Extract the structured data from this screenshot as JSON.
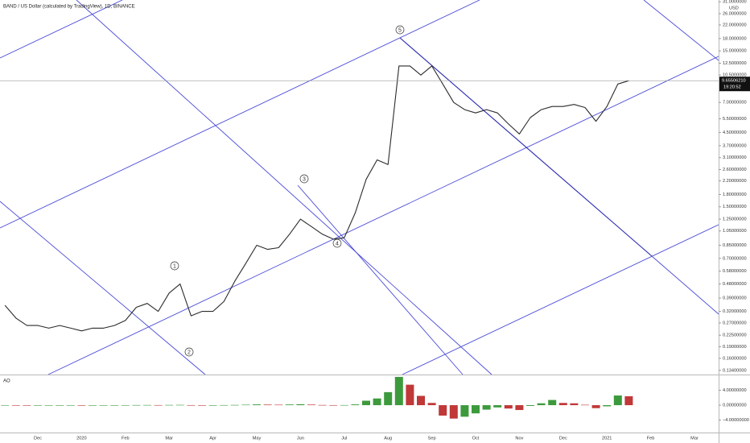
{
  "chart_data": {
    "type": "line",
    "title": "BAND / US Dollar (calculated by TradingView), 1D, BINANCE",
    "currency": "USD",
    "log_scale": true,
    "categories": [
      null,
      null,
      null,
      "Dec",
      null,
      null,
      null,
      "2020",
      null,
      null,
      null,
      "Feb",
      null,
      null,
      null,
      "Mar",
      null,
      null,
      null,
      "Apr",
      null,
      null,
      null,
      "May",
      null,
      null,
      null,
      "Jun",
      null,
      null,
      null,
      "Jul",
      null,
      null,
      null,
      "Aug",
      null,
      null,
      null,
      "Sep",
      null,
      null,
      null,
      "Oct",
      null,
      null,
      null,
      "Nov",
      null,
      null,
      null,
      "Dec",
      null,
      null,
      null,
      "2021",
      null,
      null,
      null,
      "Feb",
      null,
      null,
      null,
      "Mar",
      null,
      null
    ],
    "series": [
      {
        "color": "#2b2b2b",
        "values": [
          0.35,
          0.29,
          0.26,
          0.26,
          0.25,
          0.26,
          0.25,
          0.24,
          0.25,
          0.25,
          0.26,
          0.28,
          0.34,
          0.36,
          0.32,
          0.42,
          0.48,
          0.3,
          0.32,
          0.32,
          0.37,
          0.5,
          0.65,
          0.85,
          0.8,
          0.82,
          1.0,
          1.25,
          1.12,
          1.0,
          0.93,
          0.95,
          1.37,
          2.25,
          3.0,
          2.8,
          12.0,
          12.0,
          10.5,
          12.0,
          9.2,
          7.0,
          6.3,
          6.0,
          6.3,
          6.0,
          5.1,
          4.4,
          5.6,
          6.3,
          6.6,
          6.6,
          6.8,
          6.5,
          5.3,
          6.6,
          9.2,
          9.6550621,
          null,
          null,
          null,
          null,
          null,
          null,
          null,
          null
        ]
      }
    ],
    "ylim": [
      0.126,
      31.8
    ],
    "yticks": [
      {
        "value": 31,
        "label": "31.0000000"
      },
      {
        "value": 26,
        "label": "26.0000000"
      },
      {
        "value": 22,
        "label": "22.0000000"
      },
      {
        "value": 18,
        "label": "18.0000000"
      },
      {
        "value": 15,
        "label": "15.0000000"
      },
      {
        "value": 12.5,
        "label": "12.5000000"
      },
      {
        "value": 10.5,
        "label": "10.5000000"
      },
      {
        "value": 7,
        "label": "7.00000000"
      },
      {
        "value": 5.5,
        "label": "5.50000000"
      },
      {
        "value": 4.5,
        "label": "4.50000000"
      },
      {
        "value": 3.7,
        "label": "3.70000000"
      },
      {
        "value": 3.1,
        "label": "3.10000000"
      },
      {
        "value": 2.6,
        "label": "2.60000000"
      },
      {
        "value": 2.2,
        "label": "2.20000000"
      },
      {
        "value": 1.8,
        "label": "1.80000000"
      },
      {
        "value": 1.5,
        "label": "1.50000000"
      },
      {
        "value": 1.25,
        "label": "1.25000000"
      },
      {
        "value": 1.05,
        "label": "1.05000000"
      },
      {
        "value": 0.85,
        "label": "0.85000000"
      },
      {
        "value": 0.7,
        "label": "0.70000000"
      },
      {
        "value": 0.58,
        "label": "0.58000000"
      },
      {
        "value": 0.48,
        "label": "0.48000000"
      },
      {
        "value": 0.39,
        "label": "0.39000000"
      },
      {
        "value": 0.32,
        "label": "0.32000000"
      },
      {
        "value": 0.27,
        "label": "0.27000000"
      },
      {
        "value": 0.225,
        "label": "0.22500000"
      },
      {
        "value": 0.19,
        "label": "0.19000000"
      },
      {
        "value": 0.16,
        "label": "0.16000000"
      },
      {
        "value": 0.134,
        "label": "0.13400000"
      }
    ],
    "last_price": {
      "value": 9.6550621,
      "label": "9.65506210"
    },
    "countdown": "19:20:52",
    "annotations": [
      "1",
      "2",
      "3",
      "4",
      "5"
    ],
    "indicator": {
      "type": "bar",
      "title": "AO",
      "up_color": "#3c9a3c",
      "down_color": "#c03838",
      "values": [
        0.02,
        0.01,
        -0.01,
        -0.01,
        0,
        0,
        0.01,
        -0.01,
        0,
        0,
        0.01,
        0.02,
        0.04,
        0.05,
        0.03,
        0.06,
        0.08,
        0.02,
        -0.02,
        0.01,
        0.03,
        0.06,
        0.12,
        0.2,
        0.15,
        0.12,
        0.18,
        0.25,
        0.15,
        0.05,
        0.02,
        0.03,
        0.2,
        1.2,
        1.8,
        3.5,
        7.6,
        5.5,
        2.5,
        0.6,
        -2.8,
        -3.6,
        -3.1,
        -2.2,
        -1.2,
        -0.6,
        -0.9,
        -1.3,
        -0.2,
        0.5,
        1.4,
        0.6,
        0.5,
        0.1,
        -0.8,
        -0.3,
        2.6,
        2.4,
        null,
        null,
        null,
        null,
        null,
        null,
        null,
        null
      ],
      "ylim": [
        -7.35,
        7.8
      ],
      "yticks": [
        {
          "value": 4,
          "label": "4.00000000"
        },
        {
          "value": 0,
          "label": "0.00000000"
        },
        {
          "value": -4,
          "label": "−4.00000000"
        }
      ]
    }
  }
}
